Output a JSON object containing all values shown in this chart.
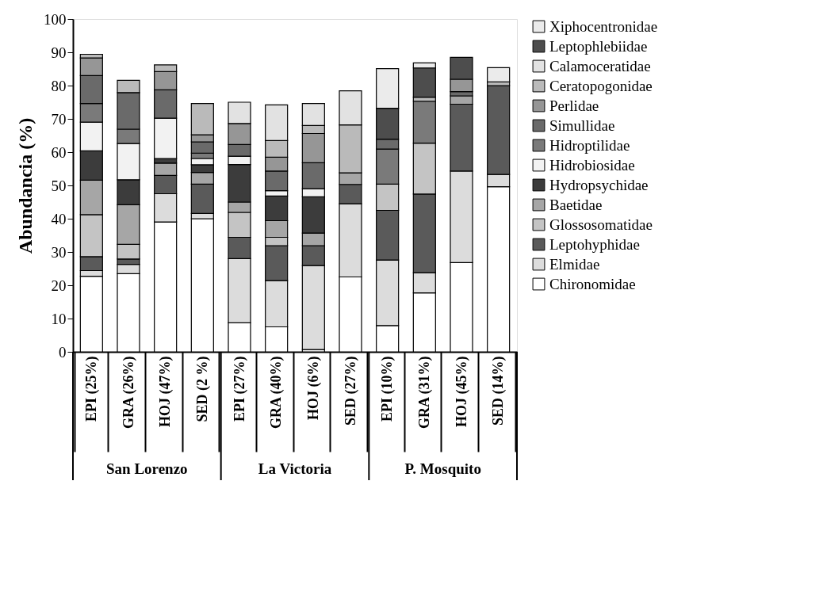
{
  "chart_data": {
    "type": "bar",
    "stacked": true,
    "ylabel": "Abundancia (%)",
    "categories": [
      "EPI (25%)",
      "GRA (26%)",
      "HOJ (47%)",
      "SED (2 %)",
      "EPI (27%)",
      "GRA (40%)",
      "HOJ (6%)",
      "SED (27%)",
      "EPI (10%)",
      "GRA (31%)",
      "HOJ (45%)",
      "SED (14%)"
    ],
    "annotations": [
      "San Lorenzo",
      "La Victoria",
      "P. Mosquito"
    ],
    "ylim": [
      0,
      100
    ],
    "yticks": [
      0,
      10,
      20,
      30,
      40,
      50,
      60,
      70,
      80,
      90,
      100
    ],
    "grid": false,
    "legend": "right",
    "series": [
      {
        "name": "Chironomidae",
        "color": "#ffffff",
        "values": [
          22.7,
          23.5,
          39.0,
          40.0,
          8.7,
          7.5,
          0.7,
          22.5,
          7.9,
          17.7,
          26.8,
          49.6
        ]
      },
      {
        "name": "Elmidae",
        "color": "#dcdcdc",
        "values": [
          1.7,
          2.8,
          8.5,
          1.6,
          19.3,
          13.9,
          25.2,
          22.0,
          19.7,
          6.1,
          27.5,
          3.7
        ]
      },
      {
        "name": "Leptohyphidae",
        "color": "#5a5a5a",
        "values": [
          4.2,
          1.6,
          5.5,
          8.8,
          6.4,
          10.5,
          6.0,
          5.8,
          14.9,
          23.6,
          20.1,
          26.7
        ]
      },
      {
        "name": "Glossosomatidae",
        "color": "#c4c4c4",
        "values": [
          12.6,
          4.4,
          0,
          0,
          7.5,
          2.5,
          0,
          0,
          7.9,
          15.3,
          0,
          0
        ]
      },
      {
        "name": "Baetidae",
        "color": "#a6a6a6",
        "values": [
          10.4,
          11.9,
          3.7,
          3.5,
          3.1,
          5.0,
          3.8,
          3.5,
          0,
          0,
          2.5,
          0
        ]
      },
      {
        "name": "Hydropsychidae",
        "color": "#3c3c3c",
        "values": [
          8.8,
          7.5,
          1.4,
          2.3,
          11.3,
          7.4,
          10.9,
          0,
          0,
          0,
          0,
          0
        ]
      },
      {
        "name": "Hidrobiosidae",
        "color": "#f2f2f2",
        "values": [
          8.6,
          10.9,
          12.1,
          1.9,
          2.5,
          1.6,
          2.4,
          0,
          0,
          0,
          0,
          0
        ]
      },
      {
        "name": "Hidroptilidae",
        "color": "#7a7a7a",
        "values": [
          5.6,
          4.3,
          0,
          1.6,
          0,
          0,
          0,
          0,
          10.5,
          12.6,
          0,
          0
        ]
      },
      {
        "name": "Simullidae",
        "color": "#6a6a6a",
        "values": [
          8.4,
          11.0,
          8.5,
          3.4,
          3.5,
          5.9,
          7.8,
          0,
          3.0,
          0,
          1.3,
          0
        ]
      },
      {
        "name": "Perlidae",
        "color": "#969696",
        "values": [
          5.3,
          0,
          5.5,
          2.1,
          6.3,
          4.2,
          8.8,
          0,
          0,
          0,
          3.7,
          0
        ]
      },
      {
        "name": "Ceratopogonidae",
        "color": "#bababa",
        "values": [
          1.1,
          3.7,
          2.0,
          9.4,
          0,
          5.0,
          2.4,
          14.4,
          0,
          1.2,
          0,
          1.1
        ]
      },
      {
        "name": "Calamoceratidae",
        "color": "#e2e2e2",
        "values": [
          0,
          0,
          0,
          0,
          6.4,
          10.7,
          6.6,
          10.2,
          0,
          0,
          0,
          0
        ]
      },
      {
        "name": "Leptophlebiidae",
        "color": "#4d4d4d",
        "values": [
          0,
          0,
          0,
          0,
          0,
          0,
          0,
          0,
          9.3,
          8.8,
          6.6,
          0
        ]
      },
      {
        "name": "Xiphocentronidae",
        "color": "#ebebeb",
        "values": [
          0,
          0,
          0,
          0,
          0,
          0,
          0,
          0,
          11.9,
          1.5,
          0,
          4.3
        ]
      }
    ]
  }
}
